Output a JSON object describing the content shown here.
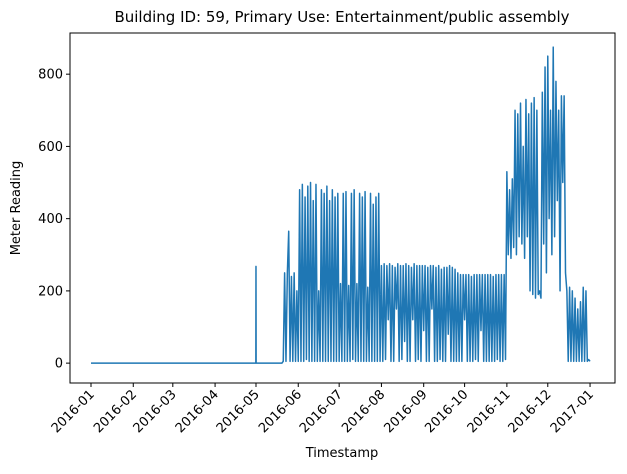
{
  "chart_data": {
    "type": "line",
    "title": "Building ID: 59, Primary Use: Entertainment/public assembly",
    "x_label": "Timestamp",
    "y_label": "Meter Reading",
    "color": "#1f77b4",
    "grid": false,
    "xlim": [
      -15.4,
      384.3
    ],
    "ylim": [
      -55,
      914
    ],
    "xticks": [
      {
        "value": 0,
        "label": "2016-01"
      },
      {
        "value": 31,
        "label": "2016-02"
      },
      {
        "value": 60,
        "label": "2016-03"
      },
      {
        "value": 91,
        "label": "2016-04"
      },
      {
        "value": 121,
        "label": "2016-05"
      },
      {
        "value": 152,
        "label": "2016-06"
      },
      {
        "value": 182,
        "label": "2016-07"
      },
      {
        "value": 213,
        "label": "2016-08"
      },
      {
        "value": 244,
        "label": "2016-09"
      },
      {
        "value": 274,
        "label": "2016-10"
      },
      {
        "value": 305,
        "label": "2016-11"
      },
      {
        "value": 335,
        "label": "2016-12"
      },
      {
        "value": 366,
        "label": "2017-01"
      }
    ],
    "yticks": [
      0,
      200,
      400,
      600,
      800
    ],
    "x": [
      0,
      120.9,
      121,
      121.1,
      140,
      141,
      142,
      143,
      144,
      145,
      146,
      147,
      148,
      149,
      150,
      151,
      152,
      153,
      154,
      155,
      156,
      157,
      158,
      159,
      160,
      161,
      162,
      163,
      164,
      165,
      166,
      167,
      168,
      169,
      170,
      171,
      172,
      173,
      174,
      175,
      176,
      177,
      178,
      179,
      180,
      181,
      182,
      183,
      184,
      185,
      186,
      187,
      188,
      189,
      190,
      191,
      192,
      193,
      194,
      195,
      196,
      197,
      198,
      199,
      200,
      201,
      202,
      203,
      204,
      205,
      206,
      207,
      208,
      209,
      210,
      211,
      212,
      213,
      214,
      215,
      216,
      217,
      218,
      219,
      220,
      221,
      222,
      223,
      224,
      225,
      226,
      227,
      228,
      229,
      230,
      231,
      232,
      233,
      234,
      235,
      236,
      237,
      238,
      239,
      240,
      241,
      242,
      243,
      244,
      245,
      246,
      247,
      248,
      249,
      250,
      251,
      252,
      253,
      254,
      255,
      256,
      257,
      258,
      259,
      260,
      261,
      262,
      263,
      264,
      265,
      266,
      267,
      268,
      269,
      270,
      271,
      272,
      273,
      274,
      275,
      276,
      277,
      278,
      279,
      280,
      281,
      282,
      283,
      284,
      285,
      286,
      287,
      288,
      289,
      290,
      291,
      292,
      293,
      294,
      295,
      296,
      297,
      298,
      299,
      300,
      301,
      302,
      303,
      304,
      305,
      306,
      307,
      308,
      309,
      310,
      311,
      312,
      313,
      314,
      315,
      316,
      317,
      318,
      319,
      320,
      321,
      322,
      323,
      324,
      325,
      326,
      327,
      328,
      329,
      330,
      331,
      332,
      333,
      334,
      335,
      336,
      337,
      338,
      339,
      340,
      341,
      342,
      343,
      344,
      345,
      346,
      347,
      348,
      349,
      350,
      351,
      352,
      353,
      354,
      355,
      356,
      357,
      358,
      359,
      360,
      361,
      362,
      363,
      364,
      365,
      366
    ],
    "values": [
      0,
      0,
      268,
      0,
      0,
      5,
      250,
      5,
      250,
      365,
      5,
      240,
      5,
      250,
      5,
      200,
      5,
      480,
      5,
      495,
      5,
      460,
      10,
      490,
      5,
      500,
      5,
      450,
      5,
      495,
      5,
      200,
      5,
      480,
      5,
      470,
      5,
      490,
      5,
      450,
      5,
      480,
      5,
      460,
      5,
      470,
      5,
      220,
      5,
      470,
      5,
      475,
      5,
      215,
      5,
      470,
      10,
      480,
      5,
      220,
      5,
      470,
      5,
      460,
      5,
      475,
      5,
      210,
      5,
      470,
      5,
      440,
      5,
      460,
      5,
      470,
      5,
      270,
      5,
      275,
      10,
      270,
      120,
      275,
      5,
      270,
      5,
      265,
      150,
      275,
      5,
      270,
      10,
      270,
      60,
      275,
      5,
      270,
      5,
      265,
      120,
      275,
      5,
      270,
      10,
      270,
      5,
      270,
      90,
      270,
      5,
      265,
      5,
      270,
      150,
      270,
      5,
      265,
      5,
      270,
      10,
      260,
      5,
      265,
      5,
      265,
      80,
      270,
      5,
      265,
      5,
      260,
      5,
      250,
      5,
      245,
      5,
      245,
      120,
      245,
      5,
      245,
      5,
      240,
      5,
      245,
      10,
      245,
      5,
      245,
      90,
      245,
      5,
      245,
      5,
      245,
      5,
      245,
      5,
      240,
      5,
      245,
      10,
      245,
      5,
      245,
      5,
      245,
      10,
      530,
      300,
      480,
      290,
      510,
      320,
      700,
      300,
      690,
      350,
      720,
      330,
      600,
      290,
      730,
      350,
      690,
      200,
      720,
      190,
      735,
      180,
      700,
      190,
      200,
      180,
      750,
      330,
      820,
      250,
      850,
      400,
      700,
      300,
      875,
      350,
      780,
      450,
      700,
      200,
      740,
      500,
      740,
      250,
      200,
      5,
      210,
      5,
      200,
      5,
      180,
      5,
      150,
      5,
      170,
      5,
      210,
      5,
      200,
      5,
      10,
      5
    ]
  }
}
